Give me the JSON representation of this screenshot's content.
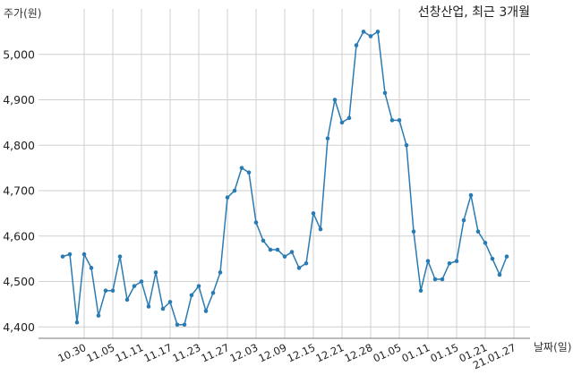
{
  "chart_data": {
    "type": "line",
    "title": "선창산업, 최근 3개월",
    "xlabel": "날짜(일)",
    "ylabel": "주가(원)",
    "ylim": [
      4375,
      5100
    ],
    "y_ticks": [
      4400,
      4500,
      4600,
      4700,
      4800,
      4900,
      5000
    ],
    "y_tick_labels": [
      "4,400",
      "4,500",
      "4,600",
      "4,700",
      "4,800",
      "4,900",
      "5,000"
    ],
    "x_tick_labels": [
      "10.30",
      "11.05",
      "11.11",
      "11.17",
      "11.23",
      "11.27",
      "12.03",
      "12.09",
      "12.15",
      "12.21",
      "12.28",
      "01.05",
      "01.11",
      "01.15",
      "01.21",
      "21.01.27"
    ],
    "x_tick_index": [
      3,
      7,
      11,
      15,
      19,
      23,
      27,
      31,
      35,
      39,
      43,
      47,
      51,
      55,
      59,
      63
    ],
    "grid": true,
    "series": [
      {
        "color": "#2b7bb3",
        "values": [
          4555,
          4560,
          4410,
          4560,
          4530,
          4425,
          4480,
          4480,
          4555,
          4460,
          4490,
          4500,
          4445,
          4520,
          4440,
          4455,
          4405,
          4405,
          4470,
          4490,
          4435,
          4475,
          4520,
          4685,
          4700,
          4750,
          4740,
          4630,
          4590,
          4570,
          4570,
          4555,
          4565,
          4530,
          4540,
          4650,
          4615,
          4815,
          4900,
          4850,
          4860,
          5020,
          5050,
          5040,
          5050,
          4915,
          4855,
          4855,
          4800,
          4610,
          4480,
          4545,
          4505,
          4505,
          4540,
          4545,
          4635,
          4690,
          4610,
          4585,
          4550,
          4515,
          4555
        ]
      }
    ]
  }
}
